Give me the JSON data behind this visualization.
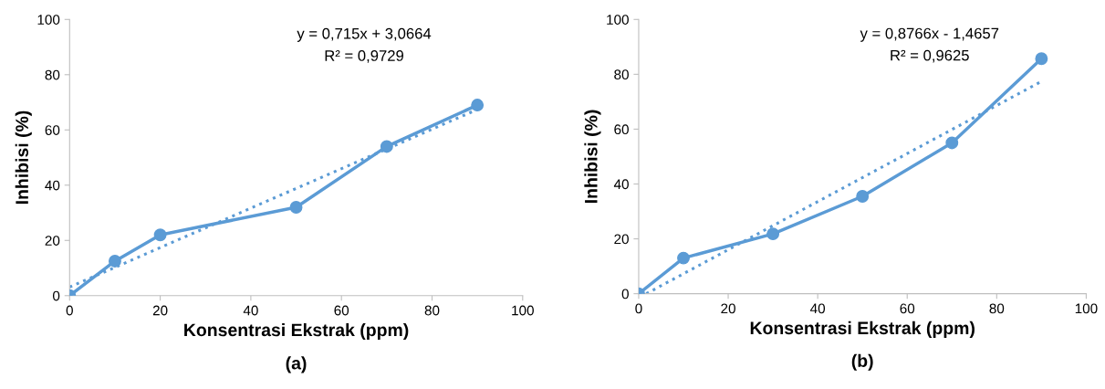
{
  "chart_data": [
    {
      "type": "line",
      "xlabel": "Konsentrasi Ekstrak (ppm)",
      "ylabel": "Inhibisi (%)",
      "xlim": [
        0,
        100
      ],
      "ylim": [
        0,
        100
      ],
      "xticks": [
        0,
        20,
        40,
        60,
        80,
        100
      ],
      "yticks": [
        0,
        20,
        40,
        60,
        80,
        100
      ],
      "grid": false,
      "legend": false,
      "marker": "circle",
      "line_style": "solid",
      "series": [
        {
          "color": "#5b9bd5",
          "x": [
            0,
            10,
            20,
            50,
            70,
            90
          ],
          "values": [
            0,
            12.5,
            22,
            32,
            54,
            69
          ]
        },
        {
          "type": "line",
          "color": "#5b9bd5",
          "line_style": "dotted",
          "marker": "none",
          "x": [
            0,
            90
          ],
          "values": [
            3.1,
            67.4
          ]
        }
      ],
      "annotations": [
        "y = 0,715x + 3,0664",
        "R² = 0,9729",
        "(a)"
      ]
    },
    {
      "type": "line",
      "xlabel": "Konsentrasi Ekstrak (ppm)",
      "ylabel": "Inhibisi (%)",
      "xlim": [
        0,
        100
      ],
      "ylim": [
        0,
        100
      ],
      "xticks": [
        0,
        20,
        40,
        60,
        80,
        100
      ],
      "yticks": [
        0,
        20,
        40,
        60,
        80,
        100
      ],
      "grid": false,
      "legend": false,
      "marker": "circle",
      "line_style": "solid",
      "series": [
        {
          "color": "#5b9bd5",
          "x": [
            0,
            10,
            30,
            50,
            70,
            90
          ],
          "values": [
            0,
            13,
            21.8,
            35.5,
            55,
            85.7
          ]
        },
        {
          "type": "line",
          "color": "#5b9bd5",
          "line_style": "dotted",
          "marker": "none",
          "x": [
            1.7,
            90
          ],
          "values": [
            0,
            77.4
          ]
        }
      ],
      "annotations": [
        "y = 0,8766x - 1,4657",
        "R² = 0,9625",
        "(b)"
      ]
    }
  ]
}
